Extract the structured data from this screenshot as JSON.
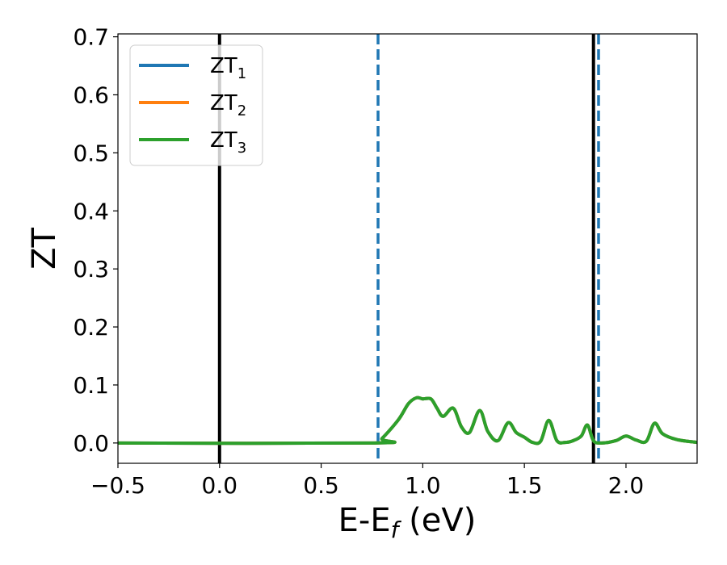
{
  "chart_data": {
    "type": "line",
    "xlabel": "E-E",
    "xlabel_sub": "f",
    "xlabel_unit": " (eV)",
    "ylabel": "ZT",
    "xlim": [
      -0.5,
      2.35
    ],
    "ylim": [
      -0.035,
      0.705
    ],
    "xticks": [
      -0.5,
      0.0,
      0.5,
      1.0,
      1.5,
      2.0
    ],
    "xtick_labels": [
      "−0.5",
      "0.0",
      "0.5",
      "1.0",
      "1.5",
      "2.0"
    ],
    "yticks": [
      0.0,
      0.1,
      0.2,
      0.3,
      0.4,
      0.5,
      0.6,
      0.7
    ],
    "ytick_labels": [
      "0.0",
      "0.1",
      "0.2",
      "0.3",
      "0.4",
      "0.5",
      "0.6",
      "0.7"
    ],
    "grid": false,
    "legend_position": "top-left",
    "series": [
      {
        "name": "ZT",
        "sub": "1",
        "color": "#1f77b4",
        "x": [
          -0.5,
          0.76,
          0.8,
          0.88,
          0.93,
          0.97,
          1.0,
          1.04,
          1.07,
          1.1,
          1.15,
          1.19,
          1.23,
          1.28,
          1.32,
          1.37,
          1.42,
          1.46,
          1.5,
          1.54,
          1.58,
          1.62,
          1.66,
          1.7,
          1.74,
          1.78,
          1.81,
          1.84,
          1.88,
          1.95,
          2.0,
          2.05,
          2.1,
          2.14,
          2.18,
          2.25,
          2.35
        ],
        "y": [
          0.0,
          0.0,
          0.008,
          0.04,
          0.068,
          0.078,
          0.076,
          0.076,
          0.06,
          0.046,
          0.06,
          0.028,
          0.018,
          0.056,
          0.02,
          0.004,
          0.035,
          0.018,
          0.01,
          0.001,
          0.003,
          0.039,
          0.004,
          0.001,
          0.004,
          0.012,
          0.031,
          0.004,
          0.0,
          0.004,
          0.012,
          0.005,
          0.003,
          0.034,
          0.016,
          0.006,
          0.001
        ]
      },
      {
        "name": "ZT",
        "sub": "2",
        "color": "#ff7f0e",
        "x": [
          -0.5,
          0.76,
          0.8,
          0.88,
          0.93,
          0.97,
          1.0,
          1.04,
          1.07,
          1.1,
          1.15,
          1.19,
          1.23,
          1.28,
          1.32,
          1.37,
          1.42,
          1.46,
          1.5,
          1.54,
          1.58,
          1.62,
          1.66,
          1.7,
          1.74,
          1.78,
          1.81,
          1.84,
          1.88,
          1.95,
          2.0,
          2.05,
          2.1,
          2.14,
          2.18,
          2.25,
          2.35
        ],
        "y": [
          0.0,
          0.0,
          0.008,
          0.04,
          0.068,
          0.078,
          0.076,
          0.076,
          0.06,
          0.046,
          0.06,
          0.028,
          0.018,
          0.056,
          0.02,
          0.004,
          0.035,
          0.018,
          0.01,
          0.001,
          0.003,
          0.039,
          0.004,
          0.001,
          0.004,
          0.012,
          0.031,
          0.004,
          0.0,
          0.004,
          0.012,
          0.005,
          0.003,
          0.034,
          0.016,
          0.006,
          0.001
        ]
      },
      {
        "name": "ZT",
        "sub": "3",
        "color": "#2ca02c",
        "x": [
          -0.5,
          0.76,
          0.8,
          0.88,
          0.93,
          0.97,
          1.0,
          1.04,
          1.07,
          1.1,
          1.15,
          1.19,
          1.23,
          1.28,
          1.32,
          1.37,
          1.42,
          1.46,
          1.5,
          1.54,
          1.58,
          1.62,
          1.66,
          1.7,
          1.74,
          1.78,
          1.81,
          1.84,
          1.88,
          1.95,
          2.0,
          2.05,
          2.1,
          2.14,
          2.18,
          2.25,
          2.35
        ],
        "y": [
          0.0,
          0.0,
          0.008,
          0.04,
          0.068,
          0.078,
          0.076,
          0.076,
          0.06,
          0.046,
          0.06,
          0.028,
          0.018,
          0.056,
          0.02,
          0.004,
          0.035,
          0.018,
          0.01,
          0.001,
          0.003,
          0.039,
          0.004,
          0.001,
          0.004,
          0.012,
          0.031,
          0.004,
          0.0,
          0.004,
          0.012,
          0.005,
          0.003,
          0.034,
          0.016,
          0.006,
          0.001
        ]
      }
    ],
    "vlines": [
      {
        "x": 0.0,
        "color": "#000000",
        "style": "solid"
      },
      {
        "x": 1.84,
        "color": "#000000",
        "style": "solid"
      },
      {
        "x": 0.78,
        "color": "#1f77b4",
        "style": "dashed"
      },
      {
        "x": 1.865,
        "color": "#1f77b4",
        "style": "dashed"
      }
    ]
  }
}
